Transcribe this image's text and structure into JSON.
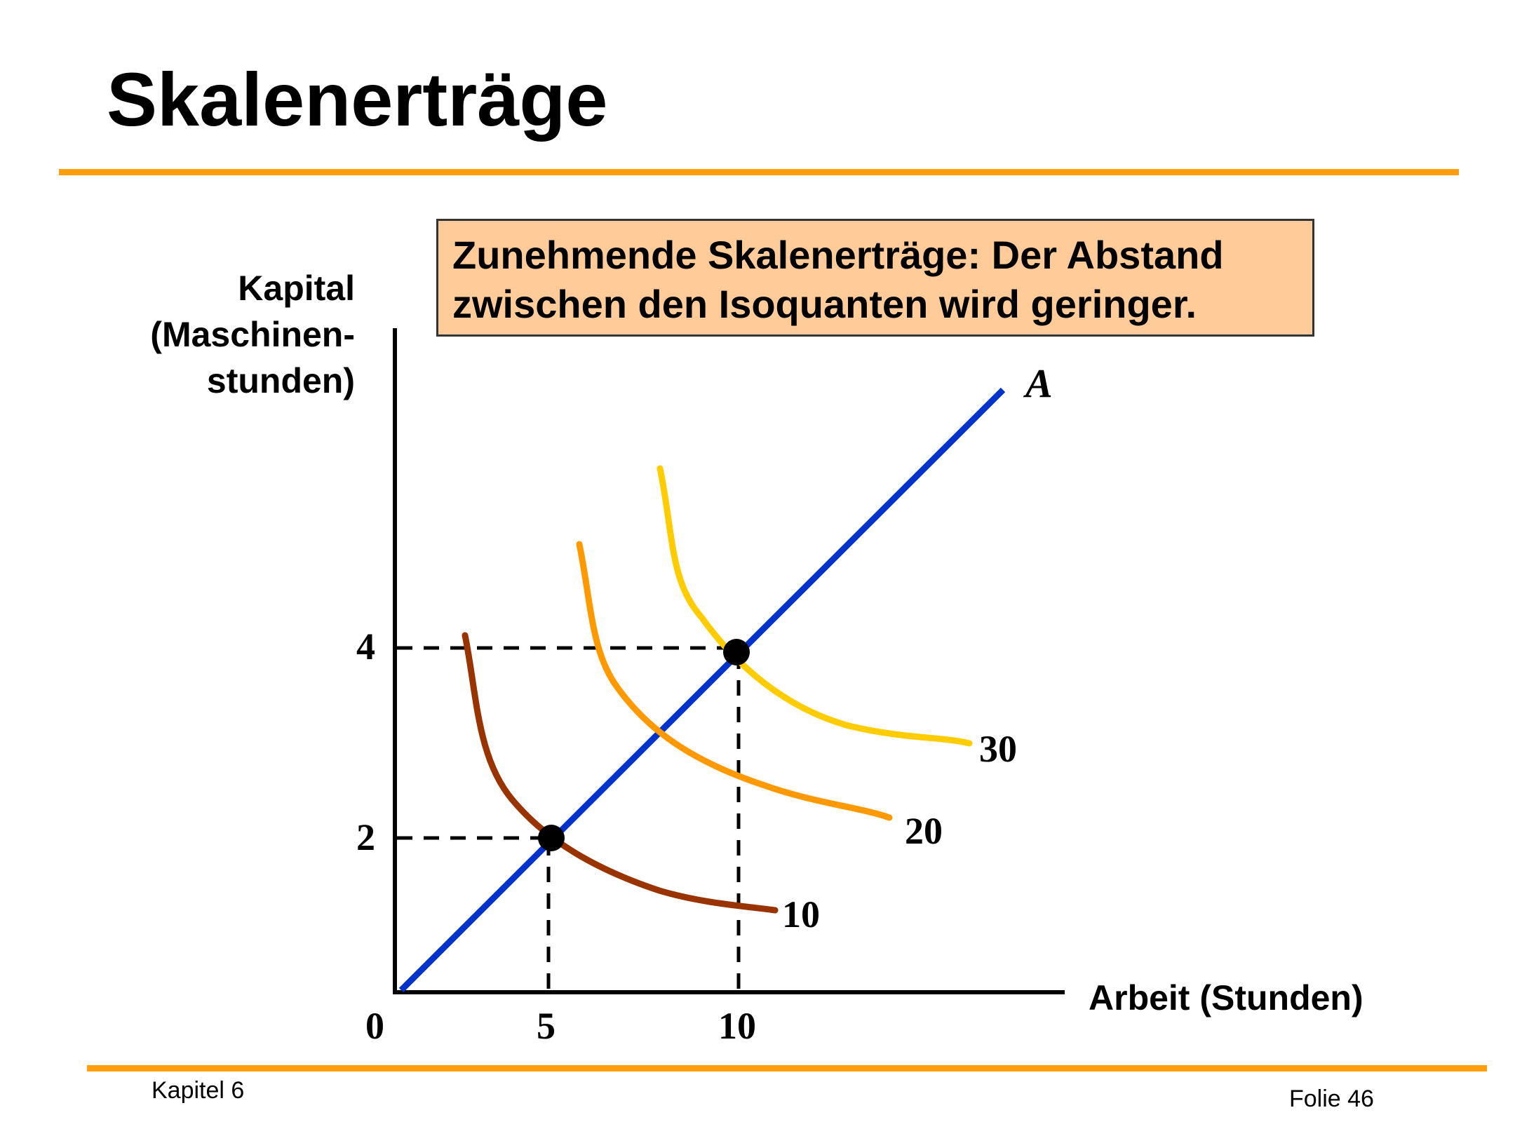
{
  "slide": {
    "title": "Skalenerträge",
    "chapter": "Kapitel 6",
    "page": "Folie 46",
    "accent_color": "#ff9e0c"
  },
  "callout": {
    "line1": "Zunehmende Skalenerträge: Der Abstand",
    "line2": "zwischen den Isoquanten wird geringer.",
    "fill_color": "#ffcc99"
  },
  "axes": {
    "y_label_line1": "Kapital",
    "y_label_line2": "(Maschinen-",
    "y_label_line3": "stunden)",
    "x_label": "Arbeit (Stunden)",
    "origin_label": "0",
    "x_ticks": [
      "5",
      "10"
    ],
    "y_ticks": [
      "4",
      "2"
    ]
  },
  "ray": {
    "label": "A",
    "color": "#0033cc"
  },
  "isoquants": [
    {
      "label": "10",
      "color": "#993300"
    },
    {
      "label": "20",
      "color": "#ff9900"
    },
    {
      "label": "30",
      "color": "#ffcc00"
    }
  ],
  "points": [
    {
      "labor": 5,
      "capital": 2,
      "output": 10
    },
    {
      "labor": 10,
      "capital": 4,
      "output": 30
    }
  ]
}
